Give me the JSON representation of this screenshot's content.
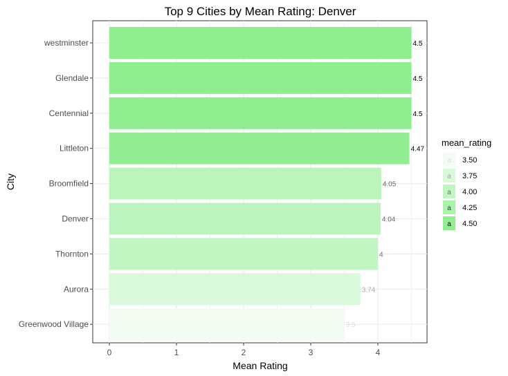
{
  "chart_data": {
    "type": "bar",
    "orientation": "horizontal",
    "title": "Top 9 Cities by Mean Rating: Denver",
    "xlabel": "Mean Rating",
    "ylabel": "City",
    "categories": [
      "westminster",
      "Glendale",
      "Centennial",
      "Littleton",
      "Broomfield",
      "Denver",
      "Thornton",
      "Aurora",
      "Greenwood Village"
    ],
    "values": [
      4.5,
      4.5,
      4.5,
      4.47,
      4.05,
      4.04,
      4.0,
      3.74,
      3.5
    ],
    "data_labels": [
      "4.5",
      "4.5",
      "4.5",
      "4.47",
      "4.05",
      "4.04",
      "4",
      "3.74",
      "3.5"
    ],
    "xlim": [
      0,
      4.6
    ],
    "xticks": [
      0,
      1,
      2,
      3,
      4
    ],
    "grid": true,
    "legend": {
      "title": "mean_rating",
      "placement": "right",
      "key_glyph": "a",
      "entries": [
        {
          "label": "3.50",
          "value": 3.5
        },
        {
          "label": "3.75",
          "value": 3.75
        },
        {
          "label": "4.00",
          "value": 4.0
        },
        {
          "label": "4.25",
          "value": 4.25
        },
        {
          "label": "4.50",
          "value": 4.5
        }
      ]
    },
    "color_scale": {
      "low": "#f2fcf2",
      "high": "#90ee90",
      "range": [
        3.5,
        4.5
      ]
    }
  }
}
